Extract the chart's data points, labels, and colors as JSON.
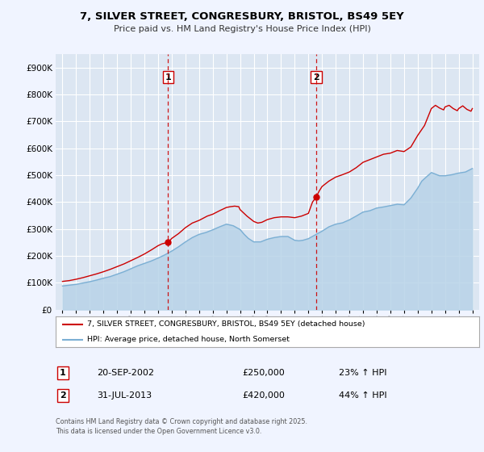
{
  "title": "7, SILVER STREET, CONGRESBURY, BRISTOL, BS49 5EY",
  "subtitle": "Price paid vs. HM Land Registry's House Price Index (HPI)",
  "line1_label": "7, SILVER STREET, CONGRESBURY, BRISTOL, BS49 5EY (detached house)",
  "line2_label": "HPI: Average price, detached house, North Somerset",
  "line1_color": "#cc0000",
  "line2_color": "#7bafd4",
  "line2_fill_color": "#b8d3e8",
  "background_color": "#f0f4ff",
  "plot_bg_color": "#dce6f2",
  "grid_color": "#ffffff",
  "ylim": [
    0,
    950000
  ],
  "yticks": [
    0,
    100000,
    200000,
    300000,
    400000,
    500000,
    600000,
    700000,
    800000,
    900000
  ],
  "sale1_x": 2002.72,
  "sale1_y": 250000,
  "sale1_label": "1",
  "sale1_date": "20-SEP-2002",
  "sale1_price": "£250,000",
  "sale1_hpi": "23% ↑ HPI",
  "sale2_x": 2013.58,
  "sale2_y": 420000,
  "sale2_label": "2",
  "sale2_date": "31-JUL-2013",
  "sale2_price": "£420,000",
  "sale2_hpi": "44% ↑ HPI",
  "footer": "Contains HM Land Registry data © Crown copyright and database right 2025.\nThis data is licensed under the Open Government Licence v3.0.",
  "xmin": 1994.5,
  "xmax": 2025.5,
  "hpi_years": [
    1995,
    1995.5,
    1996,
    1996.5,
    1997,
    1997.5,
    1998,
    1998.5,
    1999,
    1999.5,
    2000,
    2000.5,
    2001,
    2001.5,
    2002,
    2002.5,
    2003,
    2003.5,
    2004,
    2004.5,
    2005,
    2005.5,
    2006,
    2006.5,
    2007,
    2007.5,
    2008,
    2008.3,
    2008.6,
    2009,
    2009.5,
    2010,
    2010.5,
    2011,
    2011.5,
    2012,
    2012.3,
    2012.6,
    2013,
    2013.5,
    2014,
    2014.5,
    2015,
    2015.5,
    2016,
    2016.5,
    2017,
    2017.5,
    2018,
    2018.5,
    2019,
    2019.5,
    2020,
    2020.5,
    2021,
    2021.3,
    2021.6,
    2022,
    2022.3,
    2022.6,
    2023,
    2023.5,
    2024,
    2024.5,
    2025
  ],
  "hpi_vals": [
    88000,
    91000,
    94000,
    99000,
    104000,
    110000,
    117000,
    123000,
    132000,
    141000,
    152000,
    163000,
    172000,
    181000,
    192000,
    204000,
    218000,
    234000,
    252000,
    268000,
    280000,
    287000,
    297000,
    308000,
    318000,
    312000,
    298000,
    280000,
    265000,
    252000,
    252000,
    262000,
    268000,
    272000,
    272000,
    258000,
    256000,
    258000,
    264000,
    278000,
    292000,
    308000,
    318000,
    323000,
    334000,
    348000,
    363000,
    368000,
    378000,
    382000,
    387000,
    392000,
    390000,
    415000,
    452000,
    478000,
    492000,
    510000,
    504000,
    498000,
    498000,
    502000,
    508000,
    512000,
    525000
  ],
  "red_years": [
    1995,
    1995.5,
    1996,
    1996.5,
    1997,
    1997.5,
    1998,
    1998.5,
    1999,
    1999.5,
    2000,
    2000.5,
    2001,
    2001.5,
    2002,
    2002.3,
    2002.72,
    2003,
    2003.5,
    2004,
    2004.5,
    2005,
    2005.3,
    2005.6,
    2006,
    2006.5,
    2007,
    2007.3,
    2007.6,
    2007.9,
    2008,
    2008.5,
    2009,
    2009.3,
    2009.6,
    2010,
    2010.5,
    2011,
    2011.5,
    2012,
    2012.5,
    2013,
    2013.3,
    2013.58,
    2013.8,
    2014,
    2014.5,
    2015,
    2015.5,
    2016,
    2016.5,
    2017,
    2017.5,
    2018,
    2018.5,
    2019,
    2019.5,
    2020,
    2020.5,
    2021,
    2021.5,
    2022,
    2022.3,
    2022.6,
    2022.9,
    2023,
    2023.3,
    2023.6,
    2023.9,
    2024,
    2024.3,
    2024.6,
    2024.9,
    2025
  ],
  "red_vals": [
    105000,
    108000,
    113000,
    119000,
    126000,
    133000,
    141000,
    150000,
    160000,
    170000,
    182000,
    194000,
    207000,
    222000,
    238000,
    245000,
    250000,
    265000,
    283000,
    305000,
    322000,
    332000,
    340000,
    348000,
    355000,
    368000,
    380000,
    383000,
    385000,
    383000,
    372000,
    348000,
    328000,
    322000,
    325000,
    335000,
    342000,
    345000,
    345000,
    342000,
    348000,
    358000,
    400000,
    420000,
    442000,
    458000,
    478000,
    493000,
    502000,
    512000,
    528000,
    548000,
    558000,
    568000,
    578000,
    582000,
    592000,
    588000,
    605000,
    648000,
    685000,
    748000,
    760000,
    750000,
    743000,
    754000,
    760000,
    748000,
    740000,
    748000,
    758000,
    745000,
    738000,
    748000
  ]
}
